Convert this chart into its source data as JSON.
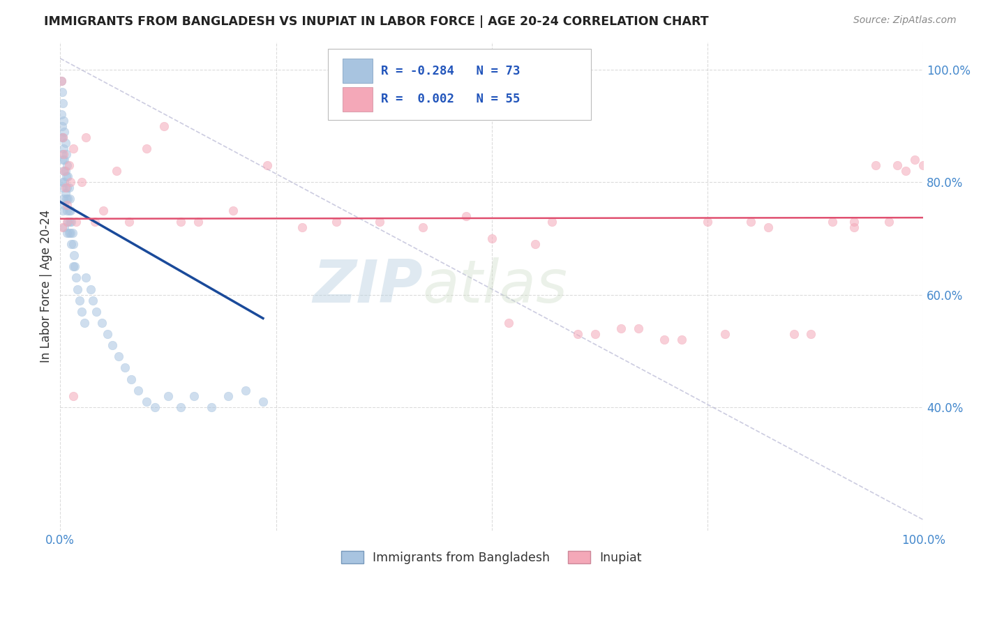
{
  "title": "IMMIGRANTS FROM BANGLADESH VS INUPIAT IN LABOR FORCE | AGE 20-24 CORRELATION CHART",
  "source": "Source: ZipAtlas.com",
  "ylabel": "In Labor Force | Age 20-24",
  "xlim": [
    0.0,
    1.0
  ],
  "ylim": [
    0.18,
    1.05
  ],
  "yticks": [
    0.4,
    0.6,
    0.8,
    1.0
  ],
  "ytick_labels": [
    "40.0%",
    "60.0%",
    "80.0%",
    "100.0%"
  ],
  "xticks": [
    0.0,
    0.25,
    0.5,
    0.75,
    1.0
  ],
  "xtick_labels": [
    "0.0%",
    "",
    "",
    "",
    "100.0%"
  ],
  "r_bangladesh": -0.284,
  "n_bangladesh": 73,
  "r_inupiat": 0.002,
  "n_inupiat": 55,
  "legend_labels": [
    "Immigrants from Bangladesh",
    "Inupiat"
  ],
  "blue_color": "#a8c4e0",
  "pink_color": "#f4a8b8",
  "blue_line_color": "#1a4a9a",
  "pink_line_color": "#e05070",
  "dot_size": 80,
  "dot_alpha": 0.55,
  "background_color": "#ffffff",
  "grid_color": "#cccccc",
  "watermark_zip": "ZIP",
  "watermark_atlas": "atlas",
  "blue_dots_x": [
    0.001,
    0.001,
    0.001,
    0.002,
    0.002,
    0.002,
    0.002,
    0.003,
    0.003,
    0.003,
    0.003,
    0.003,
    0.004,
    0.004,
    0.004,
    0.004,
    0.005,
    0.005,
    0.005,
    0.005,
    0.005,
    0.006,
    0.006,
    0.006,
    0.007,
    0.007,
    0.007,
    0.008,
    0.008,
    0.008,
    0.008,
    0.009,
    0.009,
    0.009,
    0.01,
    0.01,
    0.01,
    0.011,
    0.011,
    0.012,
    0.012,
    0.013,
    0.013,
    0.014,
    0.015,
    0.015,
    0.016,
    0.017,
    0.018,
    0.02,
    0.022,
    0.025,
    0.028,
    0.03,
    0.035,
    0.038,
    0.042,
    0.048,
    0.055,
    0.06,
    0.068,
    0.075,
    0.082,
    0.09,
    0.1,
    0.11,
    0.125,
    0.14,
    0.155,
    0.175,
    0.195,
    0.215,
    0.235
  ],
  "blue_dots_y": [
    0.98,
    0.92,
    0.88,
    0.96,
    0.9,
    0.85,
    0.8,
    0.94,
    0.88,
    0.84,
    0.79,
    0.75,
    0.91,
    0.86,
    0.82,
    0.77,
    0.89,
    0.84,
    0.8,
    0.76,
    0.72,
    0.87,
    0.82,
    0.78,
    0.85,
    0.81,
    0.77,
    0.83,
    0.79,
    0.75,
    0.71,
    0.81,
    0.77,
    0.73,
    0.79,
    0.75,
    0.71,
    0.77,
    0.73,
    0.75,
    0.71,
    0.73,
    0.69,
    0.71,
    0.69,
    0.65,
    0.67,
    0.65,
    0.63,
    0.61,
    0.59,
    0.57,
    0.55,
    0.63,
    0.61,
    0.59,
    0.57,
    0.55,
    0.53,
    0.51,
    0.49,
    0.47,
    0.45,
    0.43,
    0.41,
    0.4,
    0.42,
    0.4,
    0.42,
    0.4,
    0.42,
    0.43,
    0.41
  ],
  "pink_dots_x": [
    0.001,
    0.002,
    0.003,
    0.004,
    0.005,
    0.006,
    0.008,
    0.01,
    0.012,
    0.015,
    0.018,
    0.025,
    0.03,
    0.04,
    0.05,
    0.065,
    0.08,
    0.1,
    0.12,
    0.14,
    0.16,
    0.2,
    0.24,
    0.28,
    0.32,
    0.37,
    0.42,
    0.47,
    0.52,
    0.57,
    0.62,
    0.67,
    0.72,
    0.77,
    0.82,
    0.87,
    0.92,
    0.96,
    0.98,
    0.99,
    0.008,
    0.015,
    0.5,
    0.55,
    0.6,
    0.65,
    0.7,
    0.75,
    0.8,
    0.85,
    0.895,
    0.92,
    0.945,
    0.97,
    1.0
  ],
  "pink_dots_y": [
    0.98,
    0.72,
    0.88,
    0.85,
    0.82,
    0.79,
    0.76,
    0.83,
    0.8,
    0.86,
    0.73,
    0.8,
    0.88,
    0.73,
    0.75,
    0.82,
    0.73,
    0.86,
    0.9,
    0.73,
    0.73,
    0.75,
    0.83,
    0.72,
    0.73,
    0.73,
    0.72,
    0.74,
    0.55,
    0.73,
    0.53,
    0.54,
    0.52,
    0.53,
    0.72,
    0.53,
    0.73,
    0.73,
    0.82,
    0.84,
    0.73,
    0.42,
    0.7,
    0.69,
    0.53,
    0.54,
    0.52,
    0.73,
    0.73,
    0.53,
    0.73,
    0.72,
    0.83,
    0.83,
    0.83
  ],
  "blue_line_x": [
    0.0,
    0.235
  ],
  "blue_line_y": [
    0.765,
    0.558
  ],
  "pink_line_x": [
    0.0,
    1.0
  ],
  "pink_line_y": [
    0.735,
    0.737
  ],
  "dash_line_x": [
    0.0,
    1.0
  ],
  "dash_line_y": [
    1.02,
    0.2
  ]
}
